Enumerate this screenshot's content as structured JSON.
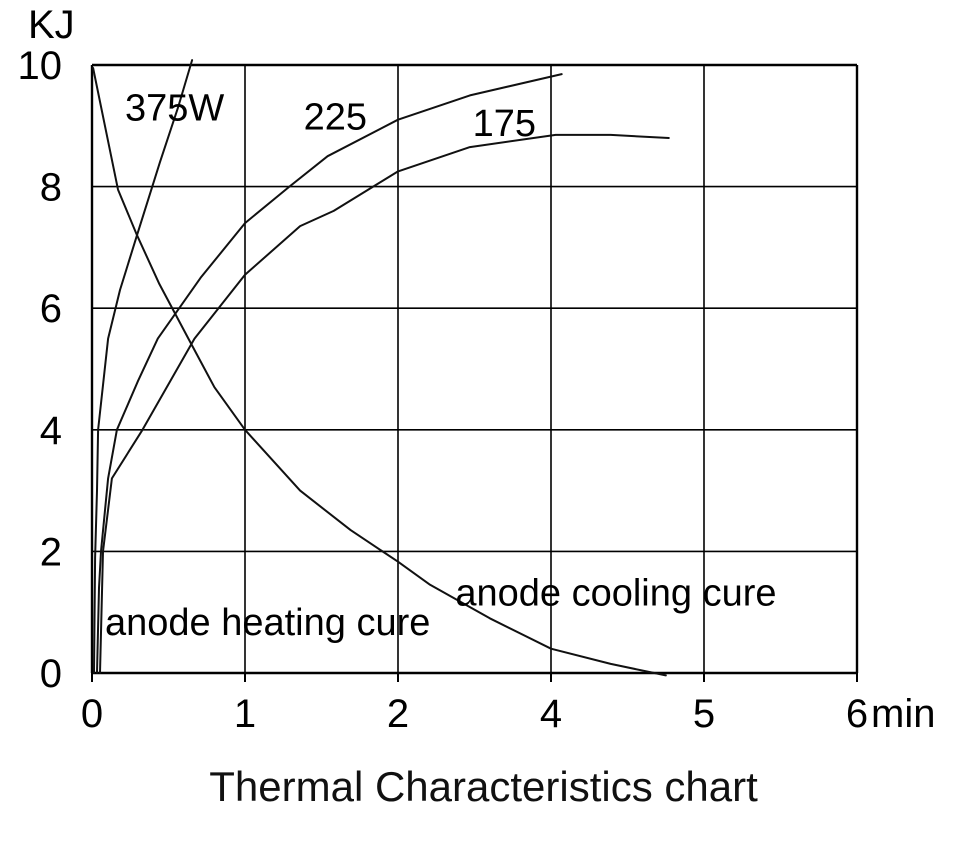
{
  "chart_data": {
    "type": "line",
    "title": "Thermal Characteristics chart",
    "x_axis": {
      "label": "min",
      "tick_labels": [
        "0",
        "1",
        "2",
        "4",
        "5",
        "6"
      ],
      "tick_values": [
        0,
        1,
        2,
        4,
        5,
        6
      ],
      "note": "tick labels as printed; gridlines evenly spaced"
    },
    "y_axis": {
      "label": "KJ",
      "tick_labels": [
        "10",
        "8",
        "6",
        "4",
        "2",
        "0"
      ],
      "tick_values": [
        10,
        8,
        6,
        4,
        2,
        0
      ],
      "range": [
        0,
        10
      ]
    },
    "grid": true,
    "legend_position": "inline-labels",
    "series": [
      {
        "name": "heating-375W",
        "label": "375W",
        "label_anchor": {
          "x": 0.54,
          "y": 9.3
        },
        "points": [
          [
            0.013,
            0
          ],
          [
            0.02,
            1.9
          ],
          [
            0.033,
            3.0
          ],
          [
            0.04,
            4.0
          ],
          [
            0.105,
            5.5
          ],
          [
            0.183,
            6.3
          ],
          [
            0.294,
            7.2
          ],
          [
            0.444,
            8.4
          ],
          [
            0.562,
            9.3
          ],
          [
            0.654,
            10.08
          ]
        ]
      },
      {
        "name": "heating-225",
        "label": "225",
        "label_anchor": {
          "x": 1.59,
          "y": 9.15
        },
        "points": [
          [
            0.033,
            0
          ],
          [
            0.046,
            1.4
          ],
          [
            0.059,
            2.0
          ],
          [
            0.105,
            3.2
          ],
          [
            0.163,
            4.0
          ],
          [
            0.3,
            4.8
          ],
          [
            0.43,
            5.5
          ],
          [
            0.71,
            6.5
          ],
          [
            1.0,
            7.4
          ],
          [
            1.29,
            8.0
          ],
          [
            1.54,
            8.5
          ],
          [
            2.0,
            9.1
          ],
          [
            2.94,
            9.5
          ],
          [
            4.07,
            9.85
          ]
        ]
      },
      {
        "name": "heating-175",
        "label": "175",
        "label_anchor": {
          "x": 3.39,
          "y": 9.05
        },
        "points": [
          [
            0.052,
            0
          ],
          [
            0.072,
            2.0
          ],
          [
            0.13,
            3.2
          ],
          [
            0.33,
            4.0
          ],
          [
            0.67,
            5.5
          ],
          [
            1.0,
            6.55
          ],
          [
            1.36,
            7.35
          ],
          [
            1.58,
            7.6
          ],
          [
            2.0,
            8.25
          ],
          [
            2.94,
            8.65
          ],
          [
            4.03,
            8.85
          ],
          [
            4.39,
            8.85
          ],
          [
            4.77,
            8.8
          ]
        ]
      },
      {
        "name": "anode-cooling",
        "label": "",
        "points": [
          [
            0.007,
            9.95
          ],
          [
            0.17,
            7.95
          ],
          [
            0.294,
            7.2
          ],
          [
            0.44,
            6.4
          ],
          [
            0.63,
            5.5
          ],
          [
            0.8,
            4.7
          ],
          [
            1.0,
            4.0
          ],
          [
            1.36,
            3.0
          ],
          [
            1.69,
            2.35
          ],
          [
            2.0,
            1.83
          ],
          [
            2.42,
            1.45
          ],
          [
            3.2,
            0.9
          ],
          [
            4.0,
            0.4
          ],
          [
            4.39,
            0.15
          ],
          [
            4.75,
            -0.04
          ]
        ]
      }
    ],
    "annotations": [
      {
        "name": "heating-label",
        "text": "anode heating cure",
        "x": 0.085,
        "y": 0.84,
        "anchor": "start"
      },
      {
        "name": "cooling-label",
        "text": "anode cooling cure",
        "x": 2.75,
        "y": 1.32,
        "anchor": "start"
      }
    ],
    "colors": {
      "line": "#111111",
      "grid": "#000000",
      "background": "#ffffff"
    }
  }
}
